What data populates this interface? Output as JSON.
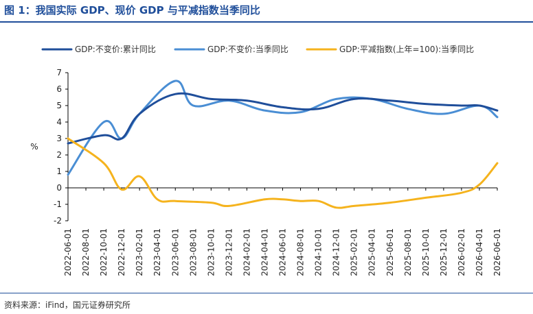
{
  "header": {
    "title": "图 1：我国实际 GDP、现价 GDP 与平减指数当季同比"
  },
  "footer": {
    "source": "资料来源：iFind，国元证券研究所"
  },
  "chart_data": {
    "type": "line",
    "title": "",
    "ylabel": "%",
    "ylim": [
      -2,
      7
    ],
    "yticks": [
      "-2",
      "-1",
      "0",
      "1",
      "2",
      "3",
      "4",
      "5",
      "6",
      "7"
    ],
    "x": [
      "2022-06-01",
      "2022-08-01",
      "2022-10-01",
      "2022-12-01",
      "2023-02-01",
      "2023-04-01",
      "2023-06-01",
      "2023-08-01",
      "2023-10-01",
      "2023-12-01",
      "2024-02-01",
      "2024-04-01",
      "2024-06-01",
      "2024-08-01",
      "2024-10-01",
      "2024-12-01",
      "2025-02-01",
      "2025-04-01",
      "2025-06-01",
      "2025-08-01",
      "2025-10-01",
      "2025-12-01",
      "2026-02-01",
      "2026-04-01",
      "2026-06-01"
    ],
    "legend_position": "top",
    "grid": false,
    "series": [
      {
        "name": "GDP:不变价:累计同比",
        "color": "#1f4e9a",
        "points": [
          [
            0,
            2.7
          ],
          [
            2,
            3.2
          ],
          [
            3,
            3.0
          ],
          [
            4,
            4.5
          ],
          [
            6,
            5.7
          ],
          [
            8,
            5.4
          ],
          [
            10,
            5.3
          ],
          [
            12,
            4.9
          ],
          [
            14,
            4.8
          ],
          [
            16,
            5.4
          ],
          [
            18,
            5.3
          ],
          [
            20,
            5.1
          ],
          [
            22,
            5.0
          ],
          [
            23,
            5.0
          ],
          [
            24,
            4.7
          ]
        ]
      },
      {
        "name": "GDP:不变价:当季同比",
        "color": "#4a8ed4",
        "points": [
          [
            0,
            0.8
          ],
          [
            2,
            4.0
          ],
          [
            3,
            3.0
          ],
          [
            4,
            4.5
          ],
          [
            6,
            6.5
          ],
          [
            7,
            5.0
          ],
          [
            9,
            5.3
          ],
          [
            11,
            4.7
          ],
          [
            13,
            4.6
          ],
          [
            15,
            5.4
          ],
          [
            17,
            5.4
          ],
          [
            19,
            4.8
          ],
          [
            21,
            4.5
          ],
          [
            23,
            5.0
          ],
          [
            24,
            4.3
          ]
        ]
      },
      {
        "name": "GDP:平减指数(上年=100):当季同比",
        "color": "#f5b31d",
        "points": [
          [
            0,
            3.0
          ],
          [
            2,
            1.5
          ],
          [
            3,
            -0.1
          ],
          [
            4,
            0.7
          ],
          [
            5,
            -0.7
          ],
          [
            6,
            -0.8
          ],
          [
            8,
            -0.9
          ],
          [
            9,
            -1.1
          ],
          [
            11,
            -0.7
          ],
          [
            12,
            -0.7
          ],
          [
            13,
            -0.8
          ],
          [
            14,
            -0.8
          ],
          [
            15,
            -1.2
          ],
          [
            16,
            -1.1
          ],
          [
            18,
            -0.9
          ],
          [
            20,
            -0.6
          ],
          [
            22,
            -0.3
          ],
          [
            23,
            0.2
          ],
          [
            24,
            1.5
          ]
        ]
      }
    ]
  }
}
